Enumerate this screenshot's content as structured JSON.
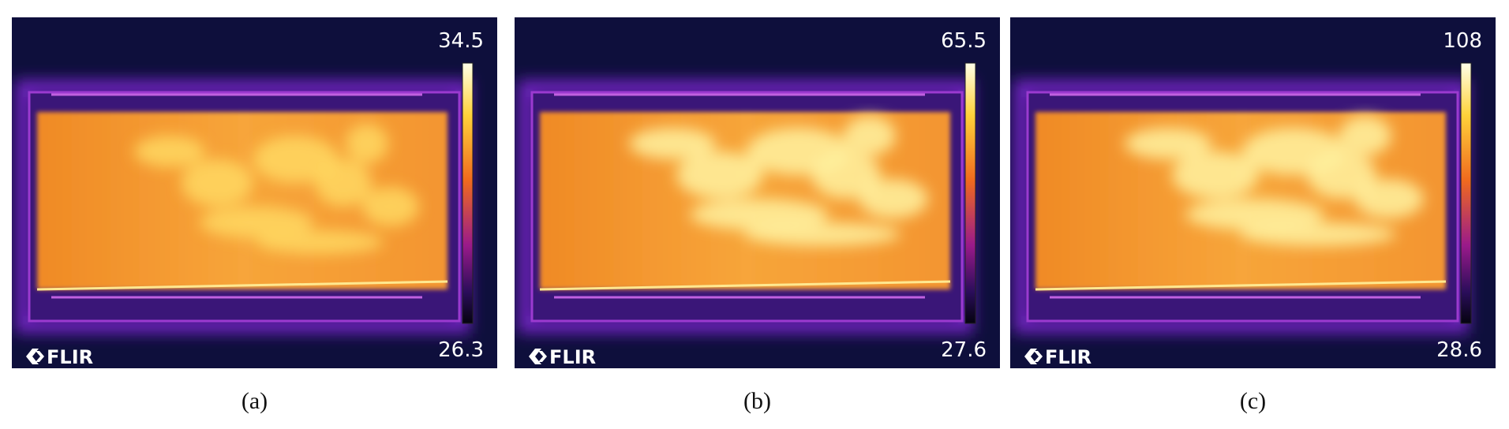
{
  "panels": [
    {
      "max": 34.5,
      "min": 26.3,
      "logo": "FLIR",
      "caption": "(a)"
    },
    {
      "max": 65.5,
      "min": 27.6,
      "logo": "FLIR",
      "caption": "(b)"
    },
    {
      "max": 108,
      "min": 28.6,
      "logo": "FLIR",
      "caption": "(c)"
    }
  ]
}
